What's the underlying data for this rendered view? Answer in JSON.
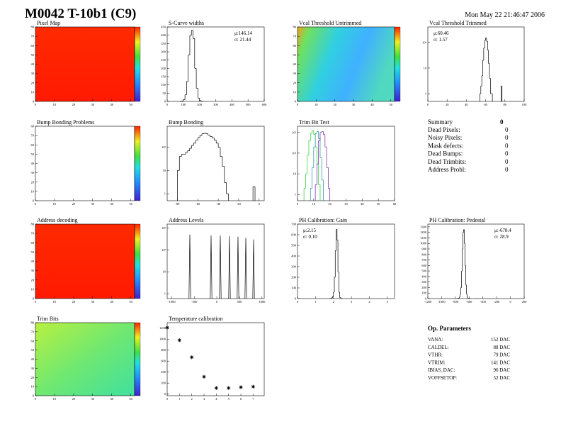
{
  "header": {
    "title": "M0042 T-10b1 (C9)",
    "date": "Mon May 22 21:46:47 2006"
  },
  "chart_data": [
    {
      "type": "heatmap",
      "title": "Pixel Map",
      "xlim": [
        0,
        52
      ],
      "ylim": [
        0,
        80
      ],
      "xticks": [
        0,
        10,
        20,
        30,
        40,
        50
      ],
      "yticks": [
        0,
        10,
        20,
        30,
        40,
        50,
        60,
        70,
        80
      ]
    },
    {
      "type": "histogram",
      "title": "S-Curve widths",
      "xlim": [
        0,
        600
      ],
      "ylim": [
        0,
        450
      ],
      "xticks": [
        0,
        100,
        200,
        300,
        400,
        500,
        600
      ],
      "yticks": [
        0,
        50,
        100,
        150,
        200,
        250,
        300,
        350,
        400,
        450
      ],
      "stats": [
        "μ:146.14",
        "σ: 21.44"
      ],
      "series": [
        {
          "color": "#000000",
          "bins": [
            80,
            90,
            100,
            110,
            120,
            130,
            140,
            150,
            160,
            170,
            180,
            190,
            200,
            210,
            220
          ],
          "values": [
            0,
            2,
            10,
            40,
            120,
            280,
            400,
            430,
            380,
            200,
            80,
            20,
            5,
            1
          ]
        }
      ]
    },
    {
      "type": "heatmap",
      "title": "Vcal Threshold Untrimmed",
      "xlim": [
        0,
        52
      ],
      "ylim": [
        0,
        80
      ],
      "xticks": [
        0,
        10,
        20,
        30,
        40,
        50
      ],
      "yticks": [
        0,
        10,
        20,
        30,
        40,
        50,
        60,
        70,
        80
      ]
    },
    {
      "type": "histogram",
      "title": "Vcal Threshold Trimmed",
      "log": true,
      "xlim": [
        0,
        100
      ],
      "ylim": [
        0.5,
        400
      ],
      "xticks": [
        0,
        20,
        40,
        60,
        80,
        100
      ],
      "yticks": [
        1,
        10,
        {
          "value": 100,
          "label": "10²"
        }
      ],
      "stats": [
        "μ:60.46",
        "σ: 1.57"
      ],
      "series": [
        {
          "color": "#000000",
          "bins": [
            54,
            55,
            56,
            57,
            58,
            59,
            60,
            61,
            62,
            63,
            64,
            65,
            66,
            67,
            68,
            69,
            70,
            71,
            72,
            73,
            74,
            75,
            76,
            77
          ],
          "values": [
            1,
            2,
            5,
            20,
            60,
            120,
            150,
            110,
            50,
            15,
            4,
            1,
            1,
            0,
            0,
            0,
            0,
            0,
            0,
            0,
            0,
            0,
            2
          ]
        }
      ]
    },
    {
      "type": "heatmap",
      "title": "Bump Bonding Problems",
      "xlim": [
        0,
        52
      ],
      "ylim": [
        0,
        80
      ],
      "xticks": [
        0,
        10,
        20,
        30,
        40,
        50
      ],
      "yticks": [
        0,
        10,
        20,
        30,
        40,
        50,
        60,
        70,
        80
      ]
    },
    {
      "type": "histogram",
      "title": "Bump Bonding",
      "log": true,
      "xlim": [
        -90,
        5
      ],
      "ylim": [
        0.5,
        800
      ],
      "xticks": [
        -80,
        -60,
        -40,
        -20,
        0
      ],
      "yticks": [
        1,
        10,
        {
          "value": 100,
          "label": "10²"
        }
      ],
      "series": [
        {
          "color": "#000000",
          "bins": [
            -80,
            -78,
            -76,
            -74,
            -72,
            -70,
            -68,
            -66,
            -64,
            -62,
            -60,
            -58,
            -56,
            -54,
            -52,
            -50,
            -48,
            -46,
            -44,
            -42,
            -40,
            -38,
            -36,
            -34,
            -32,
            -30,
            -28,
            -26,
            -24,
            -22,
            -20,
            -18,
            -16,
            -14,
            -12,
            -10,
            -8,
            -6,
            -4
          ],
          "values": [
            10,
            40,
            50,
            50,
            60,
            70,
            90,
            120,
            150,
            200,
            260,
            320,
            380,
            400,
            380,
            330,
            290,
            250,
            200,
            150,
            100,
            40,
            15,
            3,
            1,
            0,
            0,
            0,
            0,
            0,
            0,
            0,
            0,
            0,
            0,
            0,
            0,
            2
          ]
        }
      ]
    },
    {
      "type": "histogram",
      "title": "Trim Bit Test",
      "log": true,
      "xlim": [
        0,
        60
      ],
      "ylim": [
        0.5,
        2000
      ],
      "xticks": [
        0,
        10,
        20,
        30,
        40,
        50,
        60
      ],
      "yticks": [
        1,
        10,
        {
          "value": 100,
          "label": "10²"
        },
        {
          "value": 1000,
          "label": "10³"
        }
      ],
      "series": [
        {
          "color": "#22cc22",
          "bins": [
            4,
            5,
            6,
            7,
            8,
            9,
            10,
            11,
            12,
            13,
            14
          ],
          "values": [
            2,
            10,
            80,
            400,
            900,
            1200,
            800,
            200,
            30,
            3
          ]
        },
        {
          "color": "#1a8f8f",
          "bins": [
            8,
            9,
            10,
            11,
            12,
            13,
            14,
            15,
            16
          ],
          "values": [
            2,
            20,
            200,
            900,
            1100,
            500,
            60,
            5
          ]
        },
        {
          "color": "#6a1aa8",
          "bins": [
            11,
            12,
            13,
            14,
            15,
            16,
            17,
            18,
            19,
            20
          ],
          "values": [
            3,
            30,
            400,
            1000,
            1100,
            800,
            200,
            20,
            2
          ]
        }
      ]
    },
    {
      "type": "heatmap",
      "title": "Address decoding",
      "xlim": [
        0,
        52
      ],
      "ylim": [
        0,
        80
      ],
      "xticks": [
        0,
        10,
        20,
        30,
        40,
        50
      ],
      "yticks": [
        0,
        10,
        20,
        30,
        40,
        50,
        60,
        70,
        80
      ]
    },
    {
      "type": "spikes",
      "title": "Address Levels",
      "log": true,
      "xlim": [
        -1100,
        1050
      ],
      "ylim": [
        0.6,
        1500
      ],
      "xticks": [
        -1000,
        -500,
        0,
        500,
        1000
      ],
      "yticks": [
        1,
        10,
        {
          "value": 100,
          "label": "10²"
        },
        {
          "value": 1000,
          "label": "10³"
        }
      ],
      "x": [
        -598,
        -127,
        77,
        281,
        469,
        642,
        815
      ],
      "values": [
        500,
        450,
        450,
        420,
        400,
        350,
        300
      ]
    },
    {
      "type": "histogram",
      "title": "PH Calibration: Gain",
      "xlim": [
        0,
        5.4
      ],
      "ylim": [
        0,
        700
      ],
      "xticks": [
        0,
        1,
        2,
        3,
        4,
        5
      ],
      "yticks": [
        0,
        100,
        200,
        300,
        400,
        500,
        600,
        700
      ],
      "stats": [
        "μ:2.15",
        "σ: 0.10"
      ],
      "series": [
        {
          "color": "#000000",
          "bins": [
            1.8,
            1.85,
            1.9,
            1.95,
            2.0,
            2.05,
            2.1,
            2.15,
            2.2,
            2.25,
            2.3,
            2.35,
            2.4,
            2.45,
            2.5
          ],
          "values": [
            1,
            3,
            8,
            20,
            60,
            200,
            450,
            650,
            550,
            250,
            60,
            10,
            2,
            0
          ]
        }
      ]
    },
    {
      "type": "histogram",
      "title": "PH Calibration: Pedestal",
      "xlim": [
        -1200,
        200
      ],
      "ylim": [
        0,
        1350
      ],
      "xticks": [
        -1200,
        -1000,
        -800,
        -600,
        -400,
        -200,
        0,
        200
      ],
      "yticks": [
        0,
        100,
        200,
        300,
        400,
        500,
        600,
        700,
        800,
        900,
        1000,
        1100,
        1200,
        1300
      ],
      "stats": [
        "μ:-678.4",
        "σ: 28.9"
      ],
      "series": [
        {
          "color": "#000000",
          "bins": [
            -780,
            -770,
            -760,
            -750,
            -740,
            -730,
            -720,
            -710,
            -700,
            -690,
            -680,
            -670,
            -660,
            -650,
            -640,
            -630,
            -620,
            -610,
            -600,
            -590,
            -580
          ],
          "values": [
            1,
            2,
            5,
            10,
            30,
            80,
            200,
            500,
            900,
            1200,
            1250,
            1000,
            600,
            250,
            80,
            25,
            8,
            3,
            1,
            0
          ]
        }
      ]
    },
    {
      "type": "heatmap",
      "title": "Trim Bits",
      "xlim": [
        0,
        52
      ],
      "ylim": [
        0,
        80
      ],
      "xticks": [
        0,
        10,
        20,
        30,
        40,
        50
      ],
      "yticks": [
        0,
        10,
        20,
        30,
        40,
        50,
        60,
        70,
        80
      ]
    },
    {
      "type": "scatter",
      "title": "Temperature calibration",
      "xlim": [
        0,
        7.9
      ],
      "ylim": [
        -30,
        1300
      ],
      "xticks": [
        0,
        1,
        2,
        3,
        4,
        5,
        6,
        7
      ],
      "yticks": [
        0,
        200,
        400,
        600,
        800,
        1000,
        1200
      ],
      "x": [
        0,
        1,
        2,
        3,
        4,
        5,
        6,
        7
      ],
      "values": [
        1210,
        980,
        670,
        315,
        110,
        110,
        125,
        135
      ]
    }
  ],
  "summary": {
    "title": "Summary",
    "total": "0",
    "rows": [
      [
        "Dead Pixels:",
        "0"
      ],
      [
        "Noisy Pixels:",
        "0"
      ],
      [
        "Mask defects:",
        "0"
      ],
      [
        "Dead Bumps:",
        "0"
      ],
      [
        "Dead Trimbits:",
        "0"
      ],
      [
        "Address Probl:",
        "0"
      ]
    ]
  },
  "op_parameters": {
    "title": "Op. Parameters",
    "rows": [
      [
        "VANA:",
        "152 DAC"
      ],
      [
        "CALDEL:",
        "88 DAC"
      ],
      [
        "VTHR:",
        "79 DAC"
      ],
      [
        "VTRIM:",
        "141 DAC"
      ],
      [
        "IBIAS_DAC:",
        "96 DAC"
      ],
      [
        "VOFFSETOP:",
        "52 DAC"
      ]
    ]
  }
}
